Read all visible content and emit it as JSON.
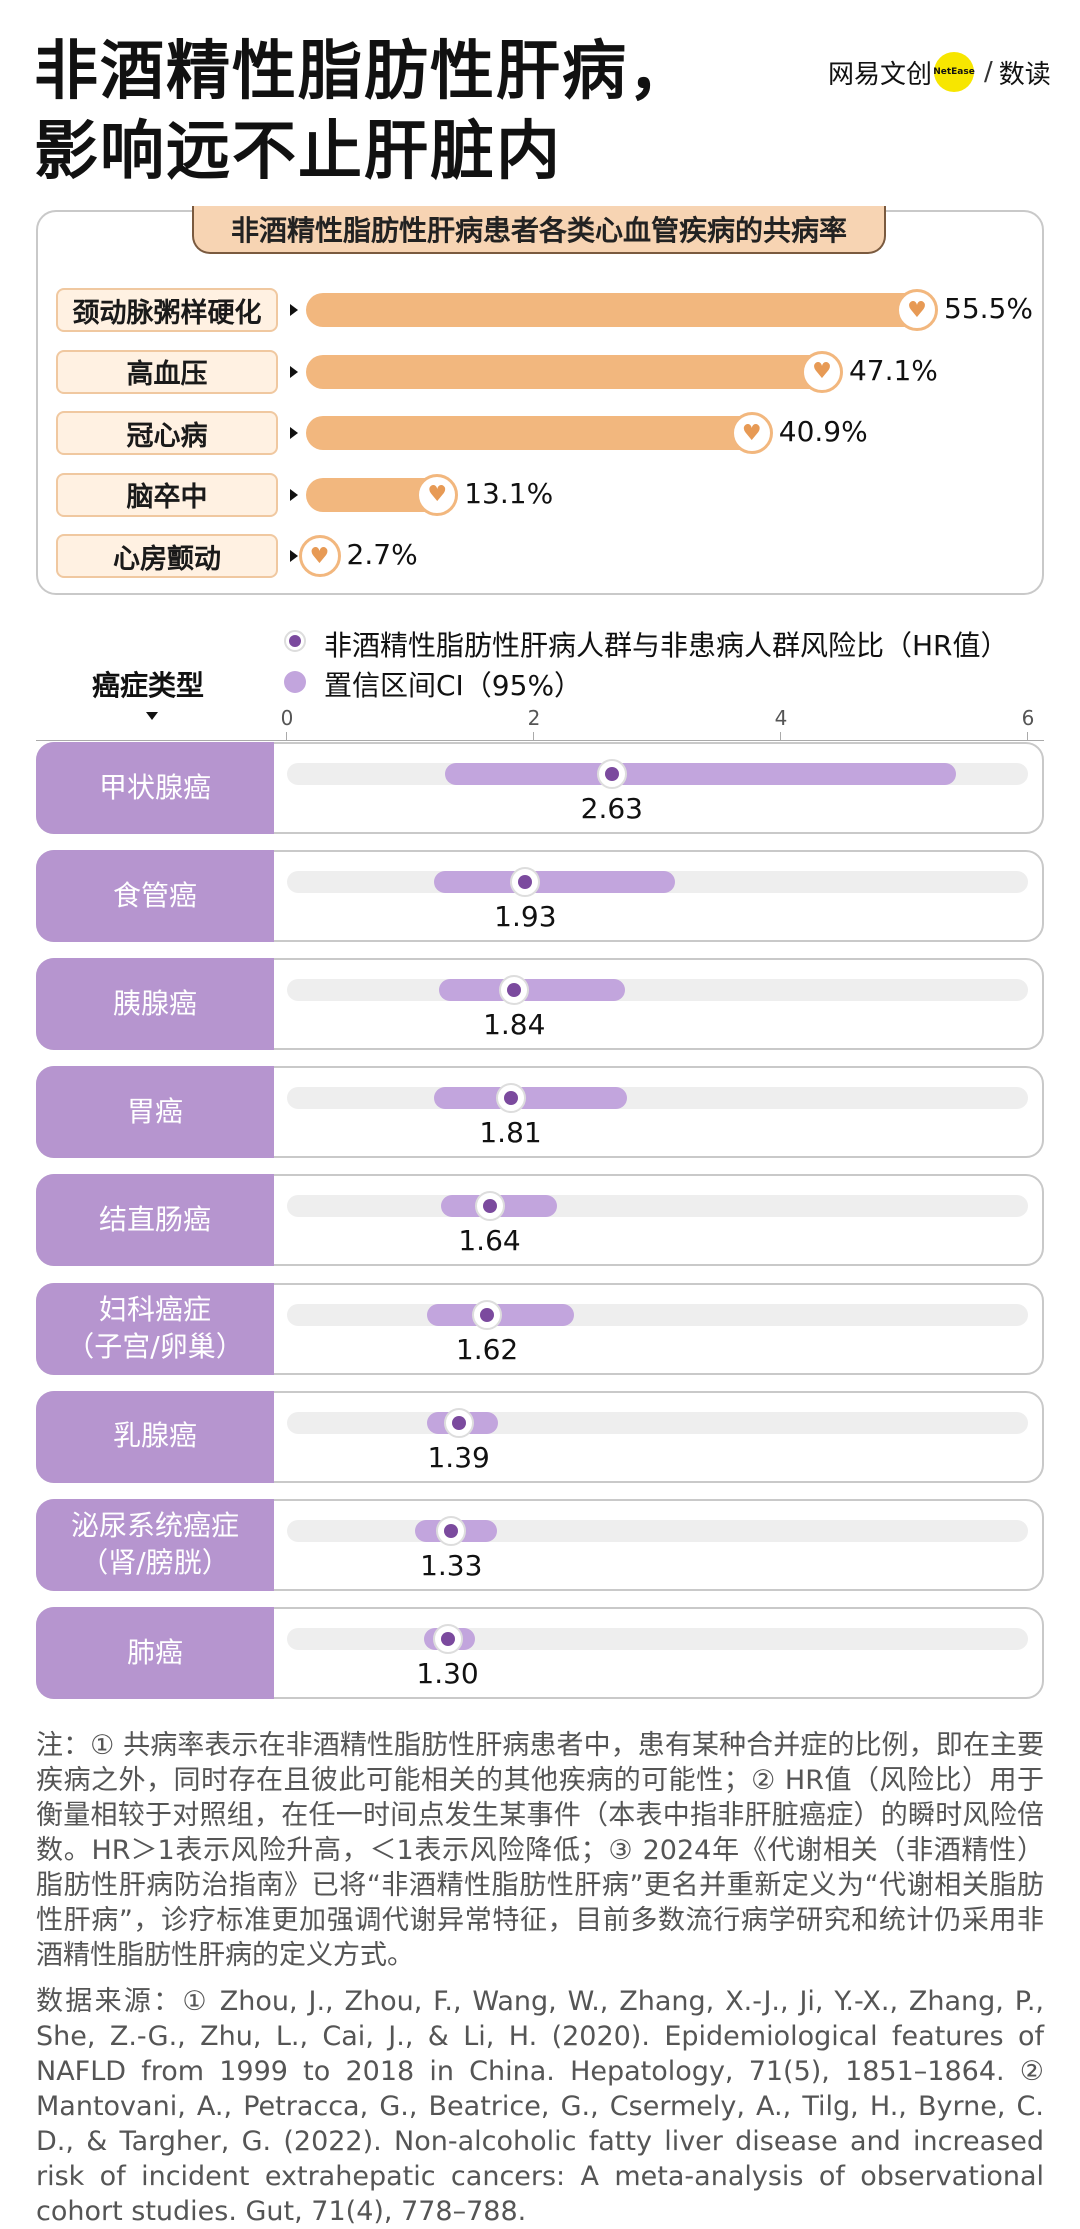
{
  "title_lines": [
    "非酒精性脂肪性肝病，",
    "影响远不止肝脏内"
  ],
  "brand": {
    "left": "网易文创",
    "badge": "NetEase",
    "slash": "/",
    "right": "数读"
  },
  "colors": {
    "comorbidity_bar": "#f2b77e",
    "ci_bar": "#c2a5dd",
    "hr_point": "#7b4a9e",
    "row_label_bg": "#b695cf"
  },
  "chart_data": [
    {
      "type": "bar",
      "orientation": "horizontal",
      "title": "非酒精性脂肪性肝病患者各类心血管疾病的共病率",
      "categories": [
        "颈动脉粥样硬化",
        "高血压",
        "冠心病",
        "脑卒中",
        "心房颤动"
      ],
      "values": [
        55.5,
        47.1,
        40.9,
        13.1,
        2.7
      ],
      "value_labels": [
        "55.5%",
        "47.1%",
        "40.9%",
        "13.1%",
        "2.7%"
      ],
      "icon": "heart-pulse-icon"
    },
    {
      "type": "scatter",
      "subtype": "forest-plot",
      "ylabel": "癌症类型",
      "legend": [
        {
          "label": "非酒精性脂肪性肝病人群与非患病人群风险比（HR值）",
          "color": "#7b4a9e"
        },
        {
          "label": "置信区间CI（95%）",
          "color": "#c2a5dd"
        }
      ],
      "xlim": [
        0,
        6
      ],
      "xticks": [
        "0",
        "2",
        "4",
        "6"
      ],
      "rows": [
        {
          "lines": [
            "甲状腺癌"
          ],
          "hr": 2.63,
          "label": "2.63",
          "ci": [
            1.28,
            5.42
          ]
        },
        {
          "lines": [
            "食管癌"
          ],
          "hr": 1.93,
          "label": "1.93",
          "ci": [
            1.19,
            3.14
          ]
        },
        {
          "lines": [
            "胰腺癌"
          ],
          "hr": 1.84,
          "label": "1.84",
          "ci": [
            1.23,
            2.74
          ]
        },
        {
          "lines": [
            "胃癌"
          ],
          "hr": 1.81,
          "label": "1.81",
          "ci": [
            1.19,
            2.75
          ]
        },
        {
          "lines": [
            "结直肠癌"
          ],
          "hr": 1.64,
          "label": "1.64",
          "ci": [
            1.25,
            2.19
          ]
        },
        {
          "lines": [
            "妇科癌症",
            "（子宫/卵巢）"
          ],
          "hr": 1.62,
          "label": "1.62",
          "ci": [
            1.13,
            2.32
          ]
        },
        {
          "lines": [
            "乳腺癌"
          ],
          "hr": 1.39,
          "label": "1.39",
          "ci": [
            1.13,
            1.71
          ]
        },
        {
          "lines": [
            "泌尿系统癌症",
            "（肾/膀胱）"
          ],
          "hr": 1.33,
          "label": "1.33",
          "ci": [
            1.04,
            1.7
          ]
        },
        {
          "lines": [
            "肺癌"
          ],
          "hr": 1.3,
          "label": "1.30",
          "ci": [
            1.11,
            1.52
          ]
        }
      ]
    }
  ],
  "footnote": "注：① 共病率表示在非酒精性脂肪性肝病患者中，患有某种合并症的比例，即在主要疾病之外，同时存在且彼此可能相关的其他疾病的可能性；② HR值（风险比）用于衡量相较于对照组，在任一时间点发生某事件（本表中指非肝脏癌症）的瞬时风险倍数。HR＞1表示风险升高，＜1表示风险降低；③ 2024年《代谢相关（非酒精性）脂肪性肝病防治指南》已将“非酒精性脂肪性肝病”更名并重新定义为“代谢相关脂肪性肝病”，诊疗标准更加强调代谢异常特征，目前多数流行病学研究和统计仍采用非酒精性脂肪性肝病的定义方式。",
  "source": "数据来源：① Zhou, J., Zhou, F., Wang, W., Zhang, X.-J., Ji, Y.-X., Zhang, P., She, Z.-G., Zhu, L., Cai, J., & Li, H. (2020). Epidemiological features of NAFLD from 1999 to 2018 in China. Hepatology, 71(5), 1851–1864. ② Mantovani, A., Petracca, G., Beatrice, G., Csermely, A., Tilg, H., Byrne, C. D., & Targher, G. (2022). Non-alcoholic fatty liver disease and increased risk of incident extrahepatic cancers: A meta-analysis of observational cohort studies. Gut, 71(4), 778–788."
}
